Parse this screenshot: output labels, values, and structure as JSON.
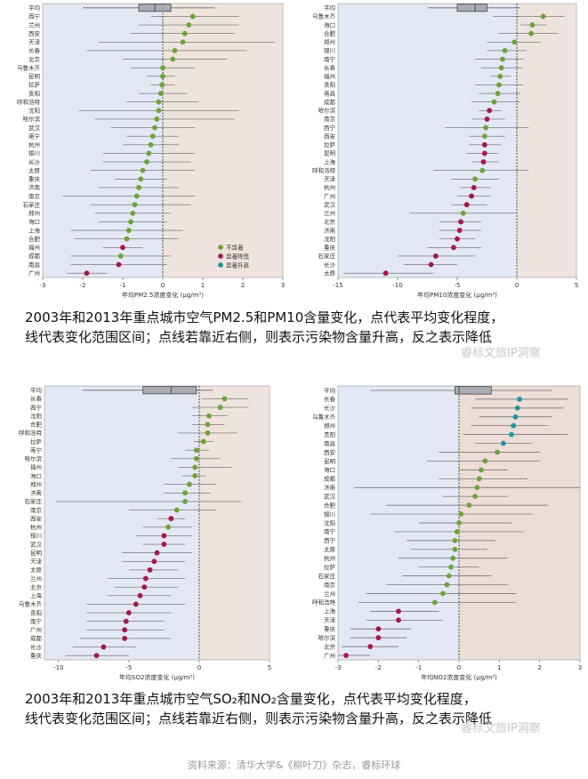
{
  "colors": {
    "left_bg": "#e3e8f4",
    "right_bg": "#efe3dd",
    "right_bg_no2": "#ecddd6",
    "line": "#666666",
    "box_fill": "#a9adb3",
    "not_sig": "#6fa33a",
    "sig_down": "#a3194a",
    "sig_up": "#1f96a3"
  },
  "captions": {
    "top_line1": "2003年和2013年重点城市空气PM2.5和PM10含量变化，点代表平均变化程度，",
    "top_line2": "线代表变化范围区间；点线若靠近右侧，则表示污染物含量升高，反之表示降低",
    "bottom_line1": "2003年和2013年重点城市空气SO₂和NO₂含量变化，点代表平均变化程度，",
    "bottom_line2": "线代表变化范围区间；点线若靠近右侧，则表示污染物含量升高，反之表示降低"
  },
  "watermark": "睿标文旅IP洞察",
  "source": "资料来源：清华大学&《柳叶刀》杂志，睿标环球",
  "chart_data": [
    {
      "id": "pm25",
      "type": "forest",
      "xlabel": "年均PM2.5浓度变化 (μg/m³)",
      "xlim": [
        -3,
        3
      ],
      "xticks": [
        "-3",
        "-2",
        "-1",
        "0",
        "1",
        "2",
        "3"
      ],
      "legend": [
        "不显著",
        "显著降低",
        "显著升高"
      ],
      "summary": {
        "label": "平均",
        "low": -2.0,
        "q1": -0.6,
        "median": -0.2,
        "q3": 0.2,
        "high": 1.3
      },
      "rows": [
        {
          "city": "西宁",
          "mean": 0.75,
          "low": -0.3,
          "high": 1.9,
          "sig": "ns"
        },
        {
          "city": "兰州",
          "mean": 0.65,
          "low": -0.6,
          "high": 1.9,
          "sig": "ns"
        },
        {
          "city": "西安",
          "mean": 0.55,
          "low": -0.8,
          "high": 1.8,
          "sig": "ns"
        },
        {
          "city": "天津",
          "mean": 0.5,
          "low": -1.6,
          "high": 2.8,
          "sig": "ns"
        },
        {
          "city": "长春",
          "mean": 0.3,
          "low": -1.9,
          "high": 2.1,
          "sig": "ns"
        },
        {
          "city": "北京",
          "mean": 0.25,
          "low": -1.0,
          "high": 1.6,
          "sig": "ns"
        },
        {
          "city": "乌鲁木齐",
          "mean": 0.0,
          "low": -0.8,
          "high": 0.8,
          "sig": "ns"
        },
        {
          "city": "昆明",
          "mean": 0.0,
          "low": -0.4,
          "high": 0.3,
          "sig": "ns"
        },
        {
          "city": "拉萨",
          "mean": -0.02,
          "low": -0.3,
          "high": 0.3,
          "sig": "ns"
        },
        {
          "city": "贵阳",
          "mean": -0.05,
          "low": -0.6,
          "high": 0.6,
          "sig": "ns"
        },
        {
          "city": "呼和浩特",
          "mean": -0.1,
          "low": -0.9,
          "high": 0.9,
          "sig": "ns"
        },
        {
          "city": "沈阳",
          "mean": -0.1,
          "low": -2.1,
          "high": 1.9,
          "sig": "ns"
        },
        {
          "city": "哈尔滨",
          "mean": -0.15,
          "low": -1.7,
          "high": 1.8,
          "sig": "ns"
        },
        {
          "city": "武汉",
          "mean": -0.2,
          "low": -1.3,
          "high": 0.8,
          "sig": "ns"
        },
        {
          "city": "南宁",
          "mean": -0.25,
          "low": -0.9,
          "high": 0.4,
          "sig": "ns"
        },
        {
          "city": "杭州",
          "mean": -0.3,
          "low": -1.0,
          "high": 0.4,
          "sig": "ns"
        },
        {
          "city": "银川",
          "mean": -0.35,
          "low": -1.5,
          "high": 0.8,
          "sig": "ns"
        },
        {
          "city": "长沙",
          "mean": -0.4,
          "low": -1.5,
          "high": 0.7,
          "sig": "ns"
        },
        {
          "city": "太原",
          "mean": -0.5,
          "low": -1.8,
          "high": 0.8,
          "sig": "ns"
        },
        {
          "city": "重庆",
          "mean": -0.55,
          "low": -1.2,
          "high": 0.1,
          "sig": "ns"
        },
        {
          "city": "济南",
          "mean": -0.6,
          "low": -1.6,
          "high": 0.4,
          "sig": "ns"
        },
        {
          "city": "南京",
          "mean": -0.65,
          "low": -2.5,
          "high": 0.8,
          "sig": "ns"
        },
        {
          "city": "石家庄",
          "mean": -0.7,
          "low": -1.8,
          "high": 0.7,
          "sig": "ns"
        },
        {
          "city": "郑州",
          "mean": -0.75,
          "low": -1.7,
          "high": 0.2,
          "sig": "ns"
        },
        {
          "city": "海口",
          "mean": -0.8,
          "low": -1.6,
          "high": 0.1,
          "sig": "ns"
        },
        {
          "city": "上海",
          "mean": -0.85,
          "low": -2.3,
          "high": 0.5,
          "sig": "ns"
        },
        {
          "city": "合肥",
          "mean": -0.9,
          "low": -2.2,
          "high": 0.4,
          "sig": "ns"
        },
        {
          "city": "福州",
          "mean": -1.0,
          "low": -1.5,
          "high": -0.5,
          "sig": "down"
        },
        {
          "city": "成都",
          "mean": -1.05,
          "low": -2.3,
          "high": 0.2,
          "sig": "ns"
        },
        {
          "city": "南昌",
          "mean": -1.1,
          "low": -2.3,
          "high": 0.1,
          "sig": "down"
        },
        {
          "city": "广州",
          "mean": -1.9,
          "low": -2.4,
          "high": -1.4,
          "sig": "down"
        }
      ]
    },
    {
      "id": "pm10",
      "type": "forest",
      "xlabel": "年均PM10浓度变化 (μg/m³)",
      "xlim": [
        -15,
        5
      ],
      "xticks": [
        "-15",
        "-10",
        "-5",
        "0",
        "5"
      ],
      "summary": {
        "label": "平均",
        "low": -7.5,
        "q1": -5.0,
        "median": -3.5,
        "q3": -2.5,
        "high": 0.3
      },
      "rows": [
        {
          "city": "乌鲁木齐",
          "mean": 2.2,
          "low": -2.0,
          "high": 4.0,
          "sig": "ns"
        },
        {
          "city": "海口",
          "mean": 1.3,
          "low": 0.3,
          "high": 2.5,
          "sig": "ns"
        },
        {
          "city": "合肥",
          "mean": 1.2,
          "low": -1.5,
          "high": 3.5,
          "sig": "ns"
        },
        {
          "city": "郑州",
          "mean": -0.2,
          "low": -2.5,
          "high": 2.0,
          "sig": "ns"
        },
        {
          "city": "银川",
          "mean": -1.0,
          "low": -2.5,
          "high": 0.8,
          "sig": "ns"
        },
        {
          "city": "南宁",
          "mean": -1.2,
          "low": -3.5,
          "high": 0.6,
          "sig": "ns"
        },
        {
          "city": "长春",
          "mean": -1.3,
          "low": -3.0,
          "high": 0.5,
          "sig": "ns"
        },
        {
          "city": "福州",
          "mean": -1.4,
          "low": -2.2,
          "high": -0.5,
          "sig": "ns"
        },
        {
          "city": "贵阳",
          "mean": -1.5,
          "low": -3.5,
          "high": 0.5,
          "sig": "ns"
        },
        {
          "city": "南昌",
          "mean": -1.6,
          "low": -3.2,
          "high": 0.3,
          "sig": "ns"
        },
        {
          "city": "成都",
          "mean": -1.9,
          "low": -3.8,
          "high": 0.3,
          "sig": "ns"
        },
        {
          "city": "哈尔滨",
          "mean": -2.3,
          "low": -3.2,
          "high": -1.3,
          "sig": "down"
        },
        {
          "city": "南京",
          "mean": -2.5,
          "low": -3.8,
          "high": -1.0,
          "sig": "down"
        },
        {
          "city": "西宁",
          "mean": -2.6,
          "low": -6.0,
          "high": 1.0,
          "sig": "ns"
        },
        {
          "city": "西安",
          "mean": -2.7,
          "low": -4.0,
          "high": -1.0,
          "sig": "ns"
        },
        {
          "city": "拉萨",
          "mean": -2.7,
          "low": -4.0,
          "high": -1.3,
          "sig": "down"
        },
        {
          "city": "昆明",
          "mean": -2.7,
          "low": -4.2,
          "high": -1.5,
          "sig": "down"
        },
        {
          "city": "上海",
          "mean": -2.8,
          "low": -3.8,
          "high": -1.5,
          "sig": "down"
        },
        {
          "city": "呼和浩特",
          "mean": -2.9,
          "low": -7.0,
          "high": 1.0,
          "sig": "ns"
        },
        {
          "city": "天津",
          "mean": -3.5,
          "low": -5.5,
          "high": -1.5,
          "sig": "ns"
        },
        {
          "city": "杭州",
          "mean": -3.6,
          "low": -4.8,
          "high": -2.2,
          "sig": "down"
        },
        {
          "city": "广州",
          "mean": -3.8,
          "low": -5.0,
          "high": -2.2,
          "sig": "down"
        },
        {
          "city": "武汉",
          "mean": -4.2,
          "low": -5.5,
          "high": -2.5,
          "sig": "down"
        },
        {
          "city": "兰州",
          "mean": -4.5,
          "low": -9.0,
          "high": 0.0,
          "sig": "ns"
        },
        {
          "city": "北京",
          "mean": -4.7,
          "low": -6.5,
          "high": -3.0,
          "sig": "down"
        },
        {
          "city": "济南",
          "mean": -4.8,
          "low": -6.5,
          "high": -3.0,
          "sig": "down"
        },
        {
          "city": "沈阳",
          "mean": -5.0,
          "low": -6.5,
          "high": -3.5,
          "sig": "down"
        },
        {
          "city": "重庆",
          "mean": -5.3,
          "low": -7.5,
          "high": -3.0,
          "sig": "down"
        },
        {
          "city": "石家庄",
          "mean": -6.8,
          "low": -10.0,
          "high": -3.5,
          "sig": "down"
        },
        {
          "city": "长沙",
          "mean": -7.2,
          "low": -9.5,
          "high": -5.0,
          "sig": "down"
        },
        {
          "city": "太原",
          "mean": -11.0,
          "low": -14.5,
          "high": -7.0,
          "sig": "down"
        }
      ]
    },
    {
      "id": "so2",
      "type": "forest",
      "xlabel": "年均SO2浓度变化 (μg/m³)",
      "xlim": [
        -11,
        5
      ],
      "xticks": [
        "-10",
        "-5",
        "0",
        "5"
      ],
      "summary": {
        "label": "平均",
        "low": -8.3,
        "q1": -4.0,
        "median": -2.0,
        "q3": -0.2,
        "high": 1.0
      },
      "rows": [
        {
          "city": "长春",
          "mean": 1.8,
          "low": 0.2,
          "high": 3.5,
          "sig": "ns"
        },
        {
          "city": "西宁",
          "mean": 1.5,
          "low": -0.5,
          "high": 3.5,
          "sig": "ns"
        },
        {
          "city": "沈阳",
          "mean": 0.7,
          "low": -0.5,
          "high": 2.0,
          "sig": "ns"
        },
        {
          "city": "合肥",
          "mean": 0.6,
          "low": -0.5,
          "high": 1.8,
          "sig": "ns"
        },
        {
          "city": "呼和浩特",
          "mean": 0.6,
          "low": -1.5,
          "high": 2.7,
          "sig": "ns"
        },
        {
          "city": "拉萨",
          "mean": 0.3,
          "low": -0.4,
          "high": 1.0,
          "sig": "ns"
        },
        {
          "city": "南宁",
          "mean": -0.2,
          "low": -1.0,
          "high": 0.7,
          "sig": "ns"
        },
        {
          "city": "哈尔滨",
          "mean": -0.2,
          "low": -2.0,
          "high": 1.5,
          "sig": "ns"
        },
        {
          "city": "福州",
          "mean": -0.3,
          "low": -1.5,
          "high": 2.3,
          "sig": "ns"
        },
        {
          "city": "海口",
          "mean": -0.3,
          "low": -1.2,
          "high": 0.5,
          "sig": "ns"
        },
        {
          "city": "郑州",
          "mean": -0.7,
          "low": -2.5,
          "high": 1.2,
          "sig": "ns"
        },
        {
          "city": "济南",
          "mean": -1.0,
          "low": -2.5,
          "high": 0.8,
          "sig": "ns"
        },
        {
          "city": "石家庄",
          "mean": -1.0,
          "low": -10.2,
          "high": 3.0,
          "sig": "ns"
        },
        {
          "city": "南京",
          "mean": -1.6,
          "low": -5.0,
          "high": 1.2,
          "sig": "ns"
        },
        {
          "city": "西安",
          "mean": -2.0,
          "low": -3.0,
          "high": -1.0,
          "sig": "down"
        },
        {
          "city": "杭州",
          "mean": -2.2,
          "low": -4.0,
          "high": -0.5,
          "sig": "ns"
        },
        {
          "city": "银川",
          "mean": -2.5,
          "low": -4.5,
          "high": -0.5,
          "sig": "down"
        },
        {
          "city": "武汉",
          "mean": -2.5,
          "low": -4.0,
          "high": -1.0,
          "sig": "down"
        },
        {
          "city": "昆明",
          "mean": -3.0,
          "low": -5.5,
          "high": -0.5,
          "sig": "down"
        },
        {
          "city": "天津",
          "mean": -3.2,
          "low": -5.5,
          "high": -1.0,
          "sig": "down"
        },
        {
          "city": "太原",
          "mean": -3.5,
          "low": -5.0,
          "high": -1.5,
          "sig": "down"
        },
        {
          "city": "兰州",
          "mean": -3.8,
          "low": -6.5,
          "high": -1.0,
          "sig": "down"
        },
        {
          "city": "北京",
          "mean": -3.9,
          "low": -6.0,
          "high": -1.5,
          "sig": "down"
        },
        {
          "city": "上海",
          "mean": -4.2,
          "low": -6.5,
          "high": -2.0,
          "sig": "down"
        },
        {
          "city": "乌鲁木齐",
          "mean": -4.5,
          "low": -8.0,
          "high": -1.0,
          "sig": "down"
        },
        {
          "city": "贵阳",
          "mean": -5.0,
          "low": -8.0,
          "high": -2.0,
          "sig": "down"
        },
        {
          "city": "南宁",
          "mean": -5.2,
          "low": -8.0,
          "high": -2.5,
          "sig": "down"
        },
        {
          "city": "广州",
          "mean": -5.3,
          "low": -8.0,
          "high": -2.5,
          "sig": "down"
        },
        {
          "city": "成都",
          "mean": -5.3,
          "low": -8.5,
          "high": -2.0,
          "sig": "down"
        },
        {
          "city": "长沙",
          "mean": -6.8,
          "low": -9.0,
          "high": -4.5,
          "sig": "down"
        },
        {
          "city": "重庆",
          "mean": -7.3,
          "low": -9.5,
          "high": -5.0,
          "sig": "down"
        }
      ]
    },
    {
      "id": "no2",
      "type": "forest",
      "xlabel": "年均NO2浓度变化 (μg/m³)",
      "xlim": [
        -3,
        3
      ],
      "xticks": [
        "-3",
        "-2",
        "-1",
        "0",
        "1",
        "2",
        "3"
      ],
      "summary": {
        "label": "平均",
        "low": -2.2,
        "q1": -0.1,
        "median": 0.0,
        "q3": 0.8,
        "high": 2.3
      },
      "rows": [
        {
          "city": "长春",
          "mean": 1.5,
          "low": 0.4,
          "high": 2.7,
          "sig": "up"
        },
        {
          "city": "长沙",
          "mean": 1.45,
          "low": 0.3,
          "high": 2.6,
          "sig": "up"
        },
        {
          "city": "乌鲁木齐",
          "mean": 1.4,
          "low": 0.5,
          "high": 2.3,
          "sig": "up"
        },
        {
          "city": "郑州",
          "mean": 1.35,
          "low": 0.3,
          "high": 2.2,
          "sig": "up"
        },
        {
          "city": "贵阳",
          "mean": 1.3,
          "low": 0.1,
          "high": 2.7,
          "sig": "up"
        },
        {
          "city": "南昌",
          "mean": 1.1,
          "low": 0.4,
          "high": 1.8,
          "sig": "up"
        },
        {
          "city": "西安",
          "mean": 0.95,
          "low": -0.5,
          "high": 2.0,
          "sig": "ns"
        },
        {
          "city": "昆明",
          "mean": 0.65,
          "low": -0.8,
          "high": 2.0,
          "sig": "ns"
        },
        {
          "city": "海口",
          "mean": 0.55,
          "low": 0.0,
          "high": 1.2,
          "sig": "ns"
        },
        {
          "city": "成都",
          "mean": 0.5,
          "low": -0.5,
          "high": 1.7,
          "sig": "ns"
        },
        {
          "city": "济南",
          "mean": 0.45,
          "low": -2.6,
          "high": 3.0,
          "sig": "ns"
        },
        {
          "city": "武汉",
          "mean": 0.4,
          "low": -0.4,
          "high": 1.2,
          "sig": "ns"
        },
        {
          "city": "合肥",
          "mean": 0.25,
          "low": -1.8,
          "high": 2.2,
          "sig": "ns"
        },
        {
          "city": "银川",
          "mean": 0.05,
          "low": -2.2,
          "high": 1.8,
          "sig": "ns"
        },
        {
          "city": "沈阳",
          "mean": 0.0,
          "low": -1.0,
          "high": 1.3,
          "sig": "ns"
        },
        {
          "city": "南宁",
          "mean": -0.05,
          "low": -1.6,
          "high": 1.6,
          "sig": "ns"
        },
        {
          "city": "西宁",
          "mean": -0.1,
          "low": -1.3,
          "high": 0.9,
          "sig": "ns"
        },
        {
          "city": "太原",
          "mean": -0.1,
          "low": -1.2,
          "high": 0.7,
          "sig": "ns"
        },
        {
          "city": "杭州",
          "mean": -0.15,
          "low": -1.5,
          "high": 1.2,
          "sig": "ns"
        },
        {
          "city": "拉萨",
          "mean": -0.2,
          "low": -1.0,
          "high": 0.5,
          "sig": "ns"
        },
        {
          "city": "石家庄",
          "mean": -0.25,
          "low": -1.4,
          "high": 0.8,
          "sig": "ns"
        },
        {
          "city": "南京",
          "mean": -0.3,
          "low": -1.8,
          "high": 1.2,
          "sig": "ns"
        },
        {
          "city": "兰州",
          "mean": -0.4,
          "low": -2.3,
          "high": 1.4,
          "sig": "ns"
        },
        {
          "city": "呼和浩特",
          "mean": -0.6,
          "low": -2.5,
          "high": 1.4,
          "sig": "ns"
        },
        {
          "city": "上海",
          "mean": -1.5,
          "low": -2.2,
          "high": -0.5,
          "sig": "down"
        },
        {
          "city": "天津",
          "mean": -1.5,
          "low": -2.3,
          "high": -0.4,
          "sig": "down"
        },
        {
          "city": "重庆",
          "mean": -2.0,
          "low": -2.7,
          "high": -1.2,
          "sig": "down"
        },
        {
          "city": "哈尔滨",
          "mean": -2.0,
          "low": -2.7,
          "high": -1.3,
          "sig": "down"
        },
        {
          "city": "北京",
          "mean": -2.2,
          "low": -2.9,
          "high": -1.5,
          "sig": "down"
        },
        {
          "city": "广州",
          "mean": -2.8,
          "low": -3.0,
          "high": -2.2,
          "sig": "down"
        }
      ]
    }
  ]
}
